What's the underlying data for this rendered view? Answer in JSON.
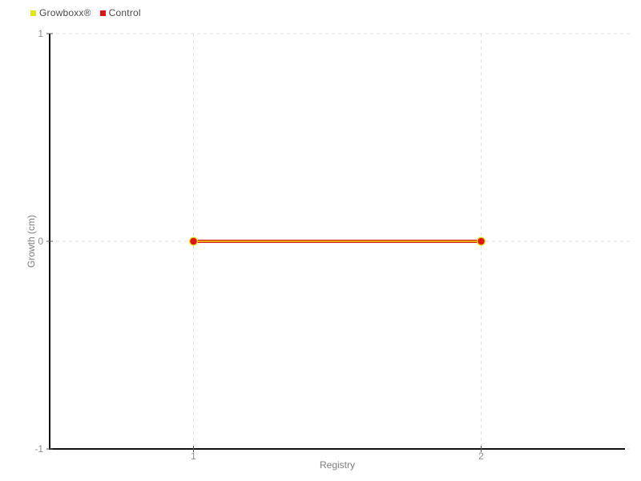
{
  "chart_data": {
    "type": "line",
    "x": [
      1,
      2
    ],
    "series": [
      {
        "name": "Growboxx®",
        "color": "#e4e41a",
        "values": [
          0,
          0
        ]
      },
      {
        "name": "Control",
        "color": "#e01414",
        "values": [
          0,
          0
        ]
      }
    ],
    "xlabel": "Registry",
    "ylabel": "Growth (cm)",
    "xlim": [
      0.5,
      2.5
    ],
    "ylim": [
      -1,
      1
    ],
    "xticks": [
      1,
      2
    ],
    "yticks": [
      1,
      0,
      -1
    ],
    "grid": "dashed",
    "legend_position": "top-left"
  },
  "colors": {
    "background": "#ffffff",
    "axis": "#111111",
    "grid": "#e0e0e0",
    "tick": "#555555",
    "tick_text": "#8f8f8f",
    "axis_label_text": "#7d7d7d",
    "legend_text": "#4a4a4a",
    "growboxx_yellow": "#e4e41a",
    "control_red": "#e01414"
  }
}
